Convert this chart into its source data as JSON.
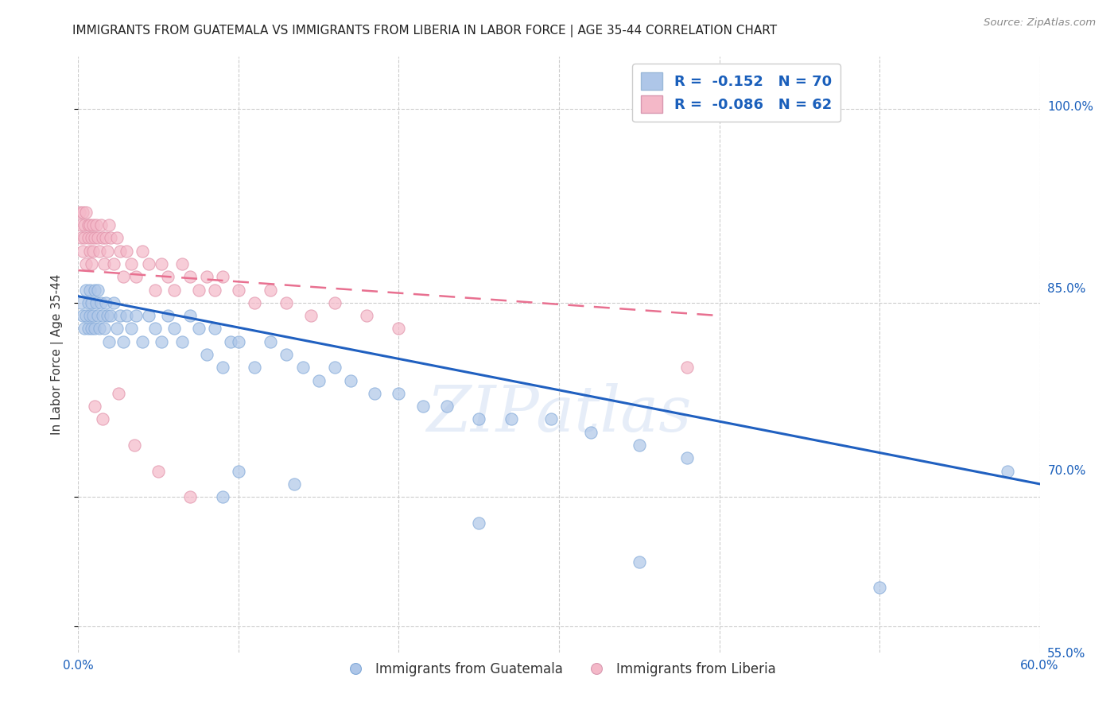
{
  "title": "IMMIGRANTS FROM GUATEMALA VS IMMIGRANTS FROM LIBERIA IN LABOR FORCE | AGE 35-44 CORRELATION CHART",
  "source": "Source: ZipAtlas.com",
  "ylabel": "In Labor Force | Age 35-44",
  "xlim": [
    0.0,
    0.6
  ],
  "ylim": [
    0.58,
    1.04
  ],
  "xticks": [
    0.0,
    0.1,
    0.2,
    0.3,
    0.4,
    0.5,
    0.6
  ],
  "xtick_labels": [
    "0.0%",
    "",
    "",
    "",
    "",
    "",
    "60.0%"
  ],
  "yticks": [
    0.6,
    0.7,
    0.75,
    0.85,
    1.0
  ],
  "ytick_labels_right": [
    "",
    "70.0%",
    "",
    "85.0%",
    "100.0%"
  ],
  "ytick_labels_left": [
    "",
    "",
    "",
    "",
    ""
  ],
  "r_blue": -0.152,
  "n_blue": 70,
  "r_pink": -0.086,
  "n_pink": 62,
  "blue_color": "#aec6e8",
  "pink_color": "#f4b8c8",
  "blue_line_color": "#2060c0",
  "pink_line_color": "#e87090",
  "watermark": "ZIPatlas",
  "legend_label_blue": "Immigrants from Guatemala",
  "legend_label_pink": "Immigrants from Liberia",
  "blue_scatter_x": [
    0.002,
    0.003,
    0.004,
    0.005,
    0.005,
    0.006,
    0.006,
    0.007,
    0.007,
    0.008,
    0.008,
    0.009,
    0.01,
    0.01,
    0.011,
    0.012,
    0.012,
    0.013,
    0.014,
    0.015,
    0.016,
    0.017,
    0.018,
    0.019,
    0.02,
    0.022,
    0.024,
    0.026,
    0.028,
    0.03,
    0.033,
    0.036,
    0.04,
    0.044,
    0.048,
    0.052,
    0.056,
    0.06,
    0.065,
    0.07,
    0.075,
    0.08,
    0.085,
    0.09,
    0.095,
    0.1,
    0.11,
    0.12,
    0.13,
    0.14,
    0.15,
    0.16,
    0.17,
    0.185,
    0.2,
    0.215,
    0.23,
    0.25,
    0.27,
    0.295,
    0.32,
    0.35,
    0.38,
    0.1,
    0.135,
    0.09,
    0.25,
    0.35,
    0.5,
    0.58
  ],
  "blue_scatter_y": [
    0.85,
    0.84,
    0.83,
    0.86,
    0.84,
    0.85,
    0.83,
    0.84,
    0.86,
    0.85,
    0.83,
    0.84,
    0.86,
    0.83,
    0.85,
    0.84,
    0.86,
    0.83,
    0.85,
    0.84,
    0.83,
    0.85,
    0.84,
    0.82,
    0.84,
    0.85,
    0.83,
    0.84,
    0.82,
    0.84,
    0.83,
    0.84,
    0.82,
    0.84,
    0.83,
    0.82,
    0.84,
    0.83,
    0.82,
    0.84,
    0.83,
    0.81,
    0.83,
    0.8,
    0.82,
    0.82,
    0.8,
    0.82,
    0.81,
    0.8,
    0.79,
    0.8,
    0.79,
    0.78,
    0.78,
    0.77,
    0.77,
    0.76,
    0.76,
    0.76,
    0.75,
    0.74,
    0.73,
    0.72,
    0.71,
    0.7,
    0.68,
    0.65,
    0.63,
    0.72
  ],
  "pink_scatter_x": [
    0.001,
    0.002,
    0.002,
    0.003,
    0.003,
    0.004,
    0.004,
    0.005,
    0.005,
    0.006,
    0.006,
    0.007,
    0.007,
    0.008,
    0.008,
    0.009,
    0.009,
    0.01,
    0.011,
    0.012,
    0.013,
    0.014,
    0.015,
    0.016,
    0.017,
    0.018,
    0.019,
    0.02,
    0.022,
    0.024,
    0.026,
    0.028,
    0.03,
    0.033,
    0.036,
    0.04,
    0.044,
    0.048,
    0.052,
    0.056,
    0.06,
    0.065,
    0.07,
    0.075,
    0.08,
    0.085,
    0.09,
    0.1,
    0.11,
    0.12,
    0.13,
    0.145,
    0.16,
    0.18,
    0.2,
    0.01,
    0.015,
    0.025,
    0.035,
    0.05,
    0.07,
    0.38
  ],
  "pink_scatter_y": [
    0.92,
    0.91,
    0.9,
    0.92,
    0.89,
    0.91,
    0.9,
    0.92,
    0.88,
    0.91,
    0.9,
    0.89,
    0.91,
    0.9,
    0.88,
    0.91,
    0.89,
    0.9,
    0.91,
    0.9,
    0.89,
    0.91,
    0.9,
    0.88,
    0.9,
    0.89,
    0.91,
    0.9,
    0.88,
    0.9,
    0.89,
    0.87,
    0.89,
    0.88,
    0.87,
    0.89,
    0.88,
    0.86,
    0.88,
    0.87,
    0.86,
    0.88,
    0.87,
    0.86,
    0.87,
    0.86,
    0.87,
    0.86,
    0.85,
    0.86,
    0.85,
    0.84,
    0.85,
    0.84,
    0.83,
    0.77,
    0.76,
    0.78,
    0.74,
    0.72,
    0.7,
    0.8
  ],
  "blue_trendline_x": [
    0.0,
    0.6
  ],
  "blue_trendline_y": [
    0.855,
    0.71
  ],
  "pink_trendline_x": [
    0.0,
    0.4
  ],
  "pink_trendline_y": [
    0.875,
    0.84
  ]
}
